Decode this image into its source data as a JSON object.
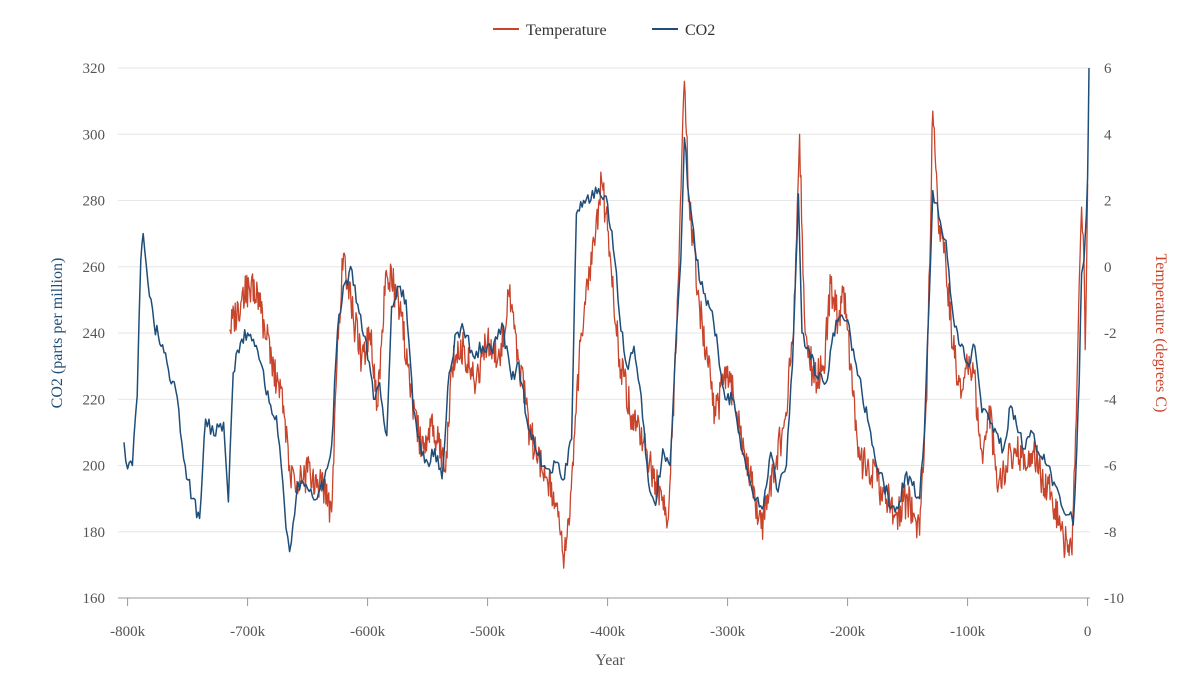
{
  "chart_data": {
    "type": "line",
    "title": "",
    "xlabel": "Year",
    "ylabel_left": "CO2 (parts per million)",
    "ylabel_right": "Temperature (degrees C)",
    "xlim": [
      -808000,
      2020
    ],
    "ylim_left": [
      160,
      320
    ],
    "ylim_right": [
      -10,
      6
    ],
    "x_ticks": [
      -800000,
      -700000,
      -600000,
      -500000,
      -400000,
      -300000,
      -200000,
      -100000,
      0
    ],
    "x_tick_labels": [
      "-800k",
      "-700k",
      "-600k",
      "-500k",
      "-400k",
      "-300k",
      "-200k",
      "-100k",
      "0"
    ],
    "y_left_ticks": [
      "160",
      "180",
      "200",
      "220",
      "240",
      "260",
      "280",
      "300",
      "320"
    ],
    "y_right_ticks": [
      "-10",
      "-8",
      "-6",
      "-4",
      "-2",
      "0",
      "2",
      "4",
      "6"
    ],
    "grid": true,
    "legend_position": "top-center",
    "colors": {
      "temperature": "#c8442b",
      "co2": "#1f4e79",
      "grid": "#e6e6e6",
      "axis": "#999999"
    },
    "series": [
      {
        "name": "Temperature",
        "axis": "right",
        "color": "#c8442b",
        "points": [
          [
            -715000,
            -1.9
          ],
          [
            -705000,
            -1.0
          ],
          [
            -697000,
            -0.5
          ],
          [
            -690000,
            -1.2
          ],
          [
            -680000,
            -2.8
          ],
          [
            -670000,
            -4.2
          ],
          [
            -665000,
            -6.0
          ],
          [
            -660000,
            -6.8
          ],
          [
            -650000,
            -6.2
          ],
          [
            -640000,
            -6.5
          ],
          [
            -630000,
            -7.4
          ],
          [
            -625000,
            -2.2
          ],
          [
            -620000,
            0.4
          ],
          [
            -612000,
            -1.5
          ],
          [
            -605000,
            -2.8
          ],
          [
            -598000,
            -2.0
          ],
          [
            -592000,
            -4.2
          ],
          [
            -585000,
            -0.2
          ],
          [
            -578000,
            -0.6
          ],
          [
            -572000,
            -1.5
          ],
          [
            -565000,
            -3.5
          ],
          [
            -555000,
            -5.5
          ],
          [
            -545000,
            -4.8
          ],
          [
            -535000,
            -6.2
          ],
          [
            -530000,
            -3.0
          ],
          [
            -520000,
            -2.4
          ],
          [
            -510000,
            -3.6
          ],
          [
            -500000,
            -2.2
          ],
          [
            -490000,
            -2.7
          ],
          [
            -482000,
            -0.9
          ],
          [
            -475000,
            -2.5
          ],
          [
            -465000,
            -5.0
          ],
          [
            -455000,
            -6.1
          ],
          [
            -445000,
            -6.8
          ],
          [
            -440000,
            -7.9
          ],
          [
            -436000,
            -8.7
          ],
          [
            -432000,
            -7.8
          ],
          [
            -428000,
            -5.2
          ],
          [
            -422000,
            -2.0
          ],
          [
            -415000,
            -0.1
          ],
          [
            -410000,
            1.0
          ],
          [
            -405000,
            2.6
          ],
          [
            -400000,
            1.1
          ],
          [
            -395000,
            -1.0
          ],
          [
            -390000,
            -2.8
          ],
          [
            -380000,
            -4.5
          ],
          [
            -370000,
            -5.3
          ],
          [
            -360000,
            -6.5
          ],
          [
            -350000,
            -7.7
          ],
          [
            -345000,
            -4.5
          ],
          [
            -340000,
            1.0
          ],
          [
            -336000,
            5.6
          ],
          [
            -332000,
            2.0
          ],
          [
            -325000,
            -0.8
          ],
          [
            -318000,
            -2.5
          ],
          [
            -310000,
            -4.5
          ],
          [
            -300000,
            -3.0
          ],
          [
            -290000,
            -4.8
          ],
          [
            -280000,
            -6.5
          ],
          [
            -272000,
            -7.9
          ],
          [
            -262000,
            -6.2
          ],
          [
            -252000,
            -4.6
          ],
          [
            -245000,
            -2.0
          ],
          [
            -240000,
            4.0
          ],
          [
            -236000,
            -1.5
          ],
          [
            -228000,
            -3.5
          ],
          [
            -220000,
            -3.0
          ],
          [
            -214000,
            -0.5
          ],
          [
            -208000,
            -1.6
          ],
          [
            -202000,
            -0.8
          ],
          [
            -196000,
            -3.8
          ],
          [
            -190000,
            -5.8
          ],
          [
            -180000,
            -6.3
          ],
          [
            -170000,
            -6.8
          ],
          [
            -160000,
            -7.5
          ],
          [
            -150000,
            -7.0
          ],
          [
            -140000,
            -8.1
          ],
          [
            -134000,
            -4.0
          ],
          [
            -129000,
            4.7
          ],
          [
            -124000,
            1.0
          ],
          [
            -118000,
            0.0
          ],
          [
            -112000,
            -2.5
          ],
          [
            -105000,
            -3.8
          ],
          [
            -100000,
            -3.0
          ],
          [
            -95000,
            -3.2
          ],
          [
            -88000,
            -5.6
          ],
          [
            -82000,
            -4.2
          ],
          [
            -75000,
            -6.8
          ],
          [
            -68000,
            -6.0
          ],
          [
            -60000,
            -5.5
          ],
          [
            -52000,
            -6.0
          ],
          [
            -45000,
            -5.6
          ],
          [
            -38000,
            -6.4
          ],
          [
            -30000,
            -6.8
          ],
          [
            -24000,
            -7.8
          ],
          [
            -20000,
            -8.3
          ],
          [
            -16000,
            -8.4
          ],
          [
            -13000,
            -8.7
          ],
          [
            -10000,
            -5.0
          ],
          [
            -7000,
            -0.5
          ],
          [
            -5000,
            1.8
          ],
          [
            -3000,
            0.2
          ],
          [
            -2000,
            -2.5
          ],
          [
            0,
            2.5
          ]
        ]
      },
      {
        "name": "CO2",
        "axis": "left",
        "color": "#1f4e79",
        "points": [
          [
            -803000,
            207
          ],
          [
            -800000,
            199
          ],
          [
            -796000,
            200
          ],
          [
            -792000,
            221
          ],
          [
            -789000,
            262
          ],
          [
            -787000,
            270
          ],
          [
            -783000,
            255
          ],
          [
            -778000,
            243
          ],
          [
            -772000,
            236
          ],
          [
            -766000,
            229
          ],
          [
            -760000,
            223
          ],
          [
            -752000,
            200
          ],
          [
            -746000,
            190
          ],
          [
            -740000,
            184
          ],
          [
            -735000,
            214
          ],
          [
            -728000,
            209
          ],
          [
            -720000,
            213
          ],
          [
            -716000,
            189
          ],
          [
            -712000,
            228
          ],
          [
            -706000,
            237
          ],
          [
            -700000,
            240
          ],
          [
            -694000,
            236
          ],
          [
            -688000,
            230
          ],
          [
            -682000,
            219
          ],
          [
            -676000,
            215
          ],
          [
            -672000,
            200
          ],
          [
            -668000,
            181
          ],
          [
            -665000,
            174
          ],
          [
            -658000,
            195
          ],
          [
            -650000,
            193
          ],
          [
            -642000,
            190
          ],
          [
            -636000,
            196
          ],
          [
            -630000,
            206
          ],
          [
            -625000,
            241
          ],
          [
            -619000,
            255
          ],
          [
            -613000,
            259
          ],
          [
            -607000,
            246
          ],
          [
            -601000,
            237
          ],
          [
            -595000,
            220
          ],
          [
            -590000,
            225
          ],
          [
            -584000,
            209
          ],
          [
            -580000,
            248
          ],
          [
            -574000,
            254
          ],
          [
            -568000,
            250
          ],
          [
            -562000,
            217
          ],
          [
            -556000,
            206
          ],
          [
            -550000,
            201
          ],
          [
            -544000,
            205
          ],
          [
            -538000,
            196
          ],
          [
            -532000,
            228
          ],
          [
            -526000,
            240
          ],
          [
            -520000,
            241
          ],
          [
            -512000,
            233
          ],
          [
            -504000,
            236
          ],
          [
            -496000,
            234
          ],
          [
            -488000,
            243
          ],
          [
            -480000,
            226
          ],
          [
            -474000,
            231
          ],
          [
            -466000,
            211
          ],
          [
            -458000,
            203
          ],
          [
            -450000,
            199
          ],
          [
            -442000,
            201
          ],
          [
            -436000,
            196
          ],
          [
            -430000,
            208
          ],
          [
            -426000,
            276
          ],
          [
            -420000,
            280
          ],
          [
            -414000,
            280
          ],
          [
            -410000,
            284
          ],
          [
            -405000,
            281
          ],
          [
            -400000,
            279
          ],
          [
            -394000,
            262
          ],
          [
            -390000,
            245
          ],
          [
            -384000,
            230
          ],
          [
            -378000,
            236
          ],
          [
            -372000,
            221
          ],
          [
            -366000,
            195
          ],
          [
            -360000,
            188
          ],
          [
            -354000,
            205
          ],
          [
            -348000,
            200
          ],
          [
            -344000,
            230
          ],
          [
            -339000,
            262
          ],
          [
            -336000,
            299
          ],
          [
            -332000,
            280
          ],
          [
            -326000,
            262
          ],
          [
            -320000,
            252
          ],
          [
            -314000,
            247
          ],
          [
            -308000,
            235
          ],
          [
            -302000,
            220
          ],
          [
            -296000,
            220
          ],
          [
            -290000,
            209
          ],
          [
            -282000,
            196
          ],
          [
            -276000,
            190
          ],
          [
            -270000,
            188
          ],
          [
            -264000,
            204
          ],
          [
            -258000,
            192
          ],
          [
            -251000,
            200
          ],
          [
            -246000,
            230
          ],
          [
            -241000,
            282
          ],
          [
            -238000,
            240
          ],
          [
            -232000,
            235
          ],
          [
            -226000,
            227
          ],
          [
            -218000,
            225
          ],
          [
            -212000,
            240
          ],
          [
            -206000,
            245
          ],
          [
            -200000,
            244
          ],
          [
            -194000,
            232
          ],
          [
            -188000,
            222
          ],
          [
            -182000,
            212
          ],
          [
            -176000,
            200
          ],
          [
            -170000,
            195
          ],
          [
            -164000,
            187
          ],
          [
            -158000,
            187
          ],
          [
            -152000,
            197
          ],
          [
            -146000,
            194
          ],
          [
            -140000,
            190
          ],
          [
            -136000,
            210
          ],
          [
            -132000,
            250
          ],
          [
            -129000,
            283
          ],
          [
            -124000,
            275
          ],
          [
            -118000,
            268
          ],
          [
            -112000,
            245
          ],
          [
            -106000,
            236
          ],
          [
            -100000,
            231
          ],
          [
            -94000,
            236
          ],
          [
            -88000,
            216
          ],
          [
            -82000,
            214
          ],
          [
            -76000,
            210
          ],
          [
            -70000,
            205
          ],
          [
            -64000,
            218
          ],
          [
            -58000,
            210
          ],
          [
            -52000,
            205
          ],
          [
            -46000,
            210
          ],
          [
            -40000,
            203
          ],
          [
            -34000,
            200
          ],
          [
            -28000,
            195
          ],
          [
            -22000,
            188
          ],
          [
            -18000,
            185
          ],
          [
            -14000,
            186
          ],
          [
            -12000,
            182
          ],
          [
            -9000,
            205
          ],
          [
            -7000,
            225
          ],
          [
            -5000,
            258
          ],
          [
            -3000,
            262
          ],
          [
            -1000,
            276
          ],
          [
            0,
            287
          ],
          [
            500,
            300
          ],
          [
            1200,
            320
          ]
        ]
      }
    ]
  }
}
